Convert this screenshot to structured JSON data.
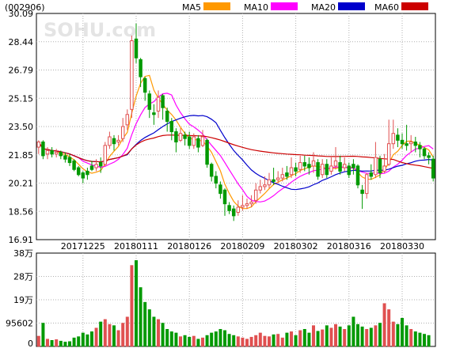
{
  "stock_code": "(002906)",
  "watermark": "SOHU.com",
  "legend": [
    {
      "label": "MA5",
      "color": "#ff9900"
    },
    {
      "label": "MA10",
      "color": "#ff00ff"
    },
    {
      "label": "MA20",
      "color": "#0000cc"
    },
    {
      "label": "MA60",
      "color": "#cc0000"
    }
  ],
  "colors": {
    "up": "#e05050",
    "down": "#009900",
    "grid": "#b0b0b0",
    "axis": "#000000"
  },
  "chart_data": {
    "type": "candlestick",
    "price_axis": {
      "ticks": [
        "30.09",
        "28.44",
        "26.79",
        "25.15",
        "23.50",
        "21.85",
        "20.21",
        "18.56",
        "16.91"
      ],
      "ylim": [
        16.91,
        30.09
      ]
    },
    "volume_axis": {
      "ticks": [
        "38万",
        "28万",
        "19万",
        "95602",
        "0"
      ],
      "ylim": [
        0,
        380000
      ]
    },
    "x_tick_labels": [
      "20171225",
      "20180111",
      "20180126",
      "20180209",
      "20180302",
      "20180316",
      "20180330"
    ],
    "x_tick_index": [
      10,
      22,
      34,
      46,
      58,
      70,
      82
    ],
    "candles": [
      [
        22.3,
        22.6,
        22.7,
        21.9,
        1
      ],
      [
        22.6,
        21.8,
        22.7,
        21.6,
        1
      ],
      [
        21.9,
        22.1,
        22.3,
        21.6,
        1
      ],
      [
        22.1,
        21.9,
        22.3,
        21.7,
        1
      ],
      [
        21.9,
        22.0,
        22.2,
        21.7,
        1
      ],
      [
        22.0,
        21.8,
        22.1,
        21.6,
        1
      ],
      [
        21.8,
        21.6,
        22.0,
        21.4,
        1
      ],
      [
        21.7,
        21.4,
        21.9,
        21.2,
        1
      ],
      [
        21.5,
        21.0,
        21.6,
        20.9,
        1
      ],
      [
        21.1,
        20.7,
        21.2,
        20.6,
        1
      ],
      [
        20.8,
        20.5,
        20.9,
        20.2,
        1
      ],
      [
        20.9,
        20.7,
        21.1,
        20.4,
        1
      ],
      [
        21.2,
        21.0,
        21.5,
        20.9,
        1
      ],
      [
        21.1,
        21.3,
        21.6,
        20.9,
        1
      ],
      [
        21.4,
        21.2,
        21.7,
        20.8,
        1
      ],
      [
        21.3,
        22.4,
        22.6,
        21.2,
        1
      ],
      [
        22.4,
        22.9,
        23.2,
        22.2,
        1
      ],
      [
        22.8,
        22.5,
        23.0,
        22.1,
        1
      ],
      [
        22.6,
        22.7,
        23.0,
        22.4,
        1
      ],
      [
        22.8,
        23.5,
        24.0,
        22.6,
        1
      ],
      [
        23.6,
        24.2,
        24.5,
        23.3,
        1
      ],
      [
        24.5,
        28.5,
        28.8,
        24.0,
        1
      ],
      [
        28.6,
        27.5,
        29.5,
        27.2,
        1
      ],
      [
        27.4,
        26.4,
        27.5,
        25.8,
        1
      ],
      [
        26.3,
        25.5,
        26.4,
        25.0,
        1
      ],
      [
        25.4,
        24.5,
        25.6,
        24.0,
        1
      ],
      [
        24.3,
        24.2,
        24.8,
        23.6,
        1
      ],
      [
        24.4,
        25.2,
        25.6,
        24.0,
        1
      ],
      [
        25.3,
        24.6,
        25.4,
        23.9,
        1
      ],
      [
        24.4,
        23.8,
        24.6,
        23.2,
        1
      ],
      [
        23.8,
        23.2,
        24.0,
        22.7,
        1
      ],
      [
        23.2,
        22.6,
        23.4,
        22.0,
        1
      ],
      [
        22.7,
        23.1,
        23.4,
        22.6,
        1
      ],
      [
        23.0,
        22.8,
        23.2,
        22.4,
        1
      ],
      [
        22.9,
        22.4,
        23.2,
        22.2,
        1
      ],
      [
        22.4,
        22.9,
        23.1,
        22.2,
        1
      ],
      [
        22.8,
        22.3,
        23.0,
        22.0,
        1
      ],
      [
        22.4,
        22.9,
        23.3,
        22.3,
        1
      ],
      [
        22.7,
        21.3,
        22.8,
        21.1,
        1
      ],
      [
        21.3,
        20.6,
        21.4,
        20.3,
        1
      ],
      [
        20.6,
        20.2,
        20.9,
        19.9,
        1
      ],
      [
        20.1,
        19.6,
        20.3,
        19.3,
        1
      ],
      [
        19.8,
        19.0,
        19.9,
        18.3,
        1
      ],
      [
        18.9,
        18.6,
        19.1,
        18.4,
        1
      ],
      [
        18.7,
        18.3,
        18.9,
        18.0,
        1
      ],
      [
        18.5,
        18.8,
        19.2,
        18.3,
        1
      ],
      [
        18.8,
        18.9,
        19.5,
        18.6,
        1
      ],
      [
        18.9,
        19.0,
        19.3,
        18.7,
        1
      ],
      [
        19.0,
        19.1,
        19.5,
        18.8,
        1
      ],
      [
        19.2,
        19.8,
        20.2,
        19.0,
        1
      ],
      [
        19.8,
        20.0,
        20.4,
        19.6,
        1
      ],
      [
        20.0,
        20.1,
        20.6,
        19.8,
        1
      ],
      [
        20.1,
        20.4,
        20.8,
        19.9,
        1
      ],
      [
        20.4,
        20.3,
        21.1,
        20.1,
        1
      ],
      [
        20.4,
        20.5,
        20.9,
        20.2,
        1
      ],
      [
        20.5,
        20.7,
        21.1,
        20.3,
        1
      ],
      [
        20.8,
        20.6,
        21.2,
        20.4,
        1
      ],
      [
        20.7,
        21.1,
        21.7,
        20.5,
        1
      ],
      [
        21.1,
        20.9,
        21.4,
        20.6,
        1
      ],
      [
        21.0,
        21.4,
        21.8,
        20.8,
        1
      ],
      [
        21.4,
        21.2,
        21.8,
        20.9,
        1
      ],
      [
        21.3,
        21.1,
        21.7,
        20.7,
        1
      ],
      [
        21.2,
        21.5,
        22.0,
        20.8,
        1
      ],
      [
        21.4,
        20.6,
        21.6,
        20.4,
        1
      ],
      [
        20.7,
        21.3,
        21.6,
        20.5,
        1
      ],
      [
        21.3,
        20.7,
        21.6,
        20.5,
        1
      ],
      [
        20.9,
        21.2,
        21.7,
        20.7,
        1
      ],
      [
        21.2,
        21.5,
        22.3,
        21.0,
        1
      ],
      [
        21.4,
        20.9,
        21.8,
        20.7,
        1
      ],
      [
        21.1,
        21.3,
        21.7,
        20.9,
        1
      ],
      [
        21.2,
        20.7,
        21.4,
        20.5,
        1
      ],
      [
        21.3,
        21.1,
        21.6,
        20.7,
        1
      ],
      [
        21.2,
        20.1,
        21.3,
        19.9,
        1
      ],
      [
        19.8,
        19.6,
        20.1,
        18.7,
        1
      ],
      [
        19.6,
        20.7,
        20.8,
        19.3,
        1
      ],
      [
        20.8,
        20.6,
        21.3,
        20.4,
        1
      ],
      [
        20.7,
        21.7,
        22.6,
        20.5,
        1
      ],
      [
        21.6,
        20.8,
        21.8,
        20.5,
        1
      ],
      [
        20.9,
        21.2,
        21.9,
        20.8,
        1
      ],
      [
        21.3,
        22.5,
        23.9,
        21.2,
        1
      ],
      [
        22.5,
        23.1,
        23.9,
        22.2,
        1
      ],
      [
        23.0,
        22.7,
        23.4,
        22.3,
        1
      ],
      [
        22.7,
        22.5,
        23.1,
        22.2,
        1
      ],
      [
        22.5,
        22.4,
        23.6,
        22.1,
        1
      ],
      [
        22.5,
        22.6,
        23.0,
        22.0,
        1
      ],
      [
        22.6,
        22.4,
        22.9,
        22.0,
        1
      ],
      [
        22.4,
        22.2,
        22.6,
        21.7,
        1
      ],
      [
        22.2,
        21.8,
        22.3,
        21.6,
        1
      ],
      [
        21.8,
        21.7,
        22.0,
        21.3,
        1
      ],
      [
        21.6,
        20.5,
        21.8,
        20.3,
        1
      ]
    ],
    "volume": [
      42000,
      95000,
      30000,
      25000,
      28000,
      22000,
      18000,
      20000,
      35000,
      40000,
      55000,
      48000,
      60000,
      75000,
      100000,
      110000,
      90000,
      85000,
      65000,
      95000,
      120000,
      330000,
      350000,
      240000,
      180000,
      150000,
      120000,
      110000,
      95000,
      70000,
      60000,
      55000,
      40000,
      45000,
      38000,
      42000,
      30000,
      35000,
      45000,
      55000,
      60000,
      70000,
      65000,
      50000,
      45000,
      40000,
      35000,
      30000,
      38000,
      45000,
      55000,
      42000,
      40000,
      48000,
      50000,
      35000,
      55000,
      60000,
      45000,
      65000,
      70000,
      55000,
      85000,
      62000,
      68000,
      85000,
      75000,
      90000,
      80000,
      70000,
      85000,
      120000,
      90000,
      80000,
      70000,
      75000,
      85000,
      95000,
      175000,
      150000,
      100000,
      90000,
      115000,
      85000,
      70000,
      60000,
      55000,
      50000,
      45000
    ],
    "volume_colors": "same as candle direction (up=red outline, down=green filled)",
    "moving_averages": [
      "MA5",
      "MA10",
      "MA20",
      "MA60"
    ]
  }
}
